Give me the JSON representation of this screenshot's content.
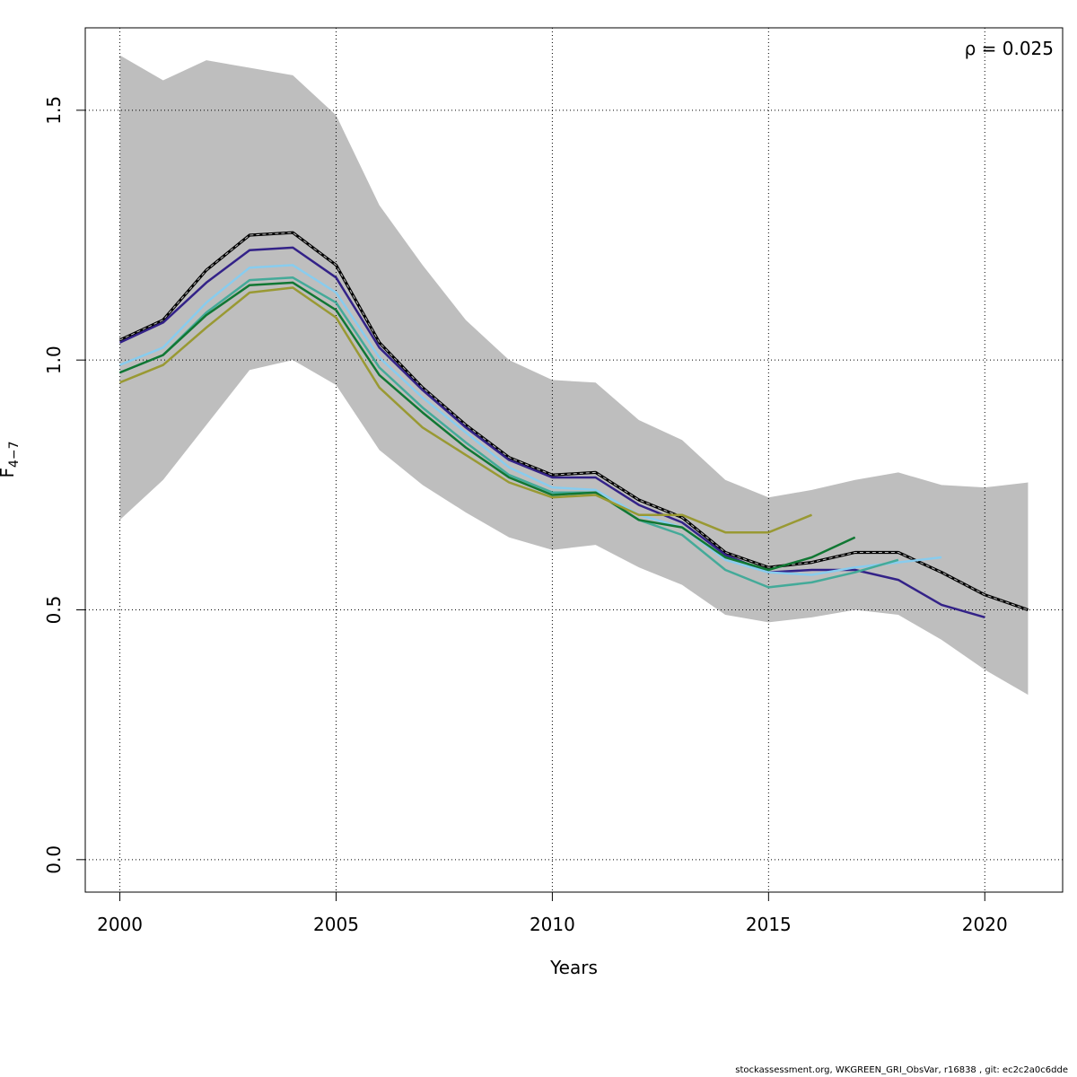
{
  "chart_data": {
    "type": "line",
    "title": "",
    "xlabel": "Years",
    "ylabel_main": "F",
    "ylabel_sub": "4−7",
    "xlim": [
      1999.2,
      2021.8
    ],
    "ylim": [
      -0.065,
      1.665
    ],
    "x_ticks": [
      2000,
      2005,
      2010,
      2015,
      2020
    ],
    "x_tick_labels": [
      "2000",
      "2005",
      "2010",
      "2015",
      "2020"
    ],
    "y_ticks": [
      0.0,
      0.5,
      1.0,
      1.5
    ],
    "y_tick_labels": [
      "0.0",
      "0.5",
      "1.0",
      "1.5"
    ],
    "grid": true,
    "annotation": "ρ = 0.025",
    "confidence_band": {
      "x": [
        2000,
        2001,
        2002,
        2003,
        2004,
        2005,
        2006,
        2007,
        2008,
        2009,
        2010,
        2011,
        2012,
        2013,
        2014,
        2015,
        2016,
        2017,
        2018,
        2019,
        2020,
        2021
      ],
      "upper": [
        1.61,
        1.56,
        1.6,
        1.585,
        1.57,
        1.49,
        1.31,
        1.19,
        1.08,
        1.0,
        0.96,
        0.955,
        0.88,
        0.84,
        0.76,
        0.725,
        0.74,
        0.76,
        0.775,
        0.75,
        0.745,
        0.755
      ],
      "lower": [
        0.68,
        0.76,
        0.87,
        0.98,
        1.0,
        0.95,
        0.82,
        0.75,
        0.695,
        0.645,
        0.62,
        0.63,
        0.585,
        0.55,
        0.49,
        0.475,
        0.485,
        0.5,
        0.49,
        0.44,
        0.38,
        0.33
      ],
      "color": "#bebebe"
    },
    "series": [
      {
        "x": [
          2000,
          2001,
          2002,
          2003,
          2004,
          2005,
          2006,
          2007,
          2008,
          2009,
          2010,
          2011,
          2012,
          2013,
          2014,
          2015,
          2016,
          2017,
          2018,
          2019,
          2020,
          2021
        ],
        "values": [
          1.04,
          1.08,
          1.18,
          1.25,
          1.255,
          1.19,
          1.035,
          0.945,
          0.87,
          0.805,
          0.77,
          0.775,
          0.72,
          0.685,
          0.615,
          0.585,
          0.595,
          0.615,
          0.615,
          0.575,
          0.53,
          0.5
        ],
        "color": "#000000",
        "style": "dashed"
      },
      {
        "x": [
          2000,
          2001,
          2002,
          2003,
          2004,
          2005,
          2006,
          2007,
          2008,
          2009,
          2010,
          2011,
          2012,
          2013,
          2014,
          2015,
          2016,
          2017,
          2018,
          2019,
          2020
        ],
        "values": [
          1.035,
          1.075,
          1.155,
          1.22,
          1.225,
          1.165,
          1.025,
          0.94,
          0.865,
          0.8,
          0.765,
          0.765,
          0.71,
          0.675,
          0.61,
          0.575,
          0.58,
          0.58,
          0.56,
          0.51,
          0.485
        ],
        "color": "#332288",
        "style": "solid"
      },
      {
        "x": [
          2000,
          2001,
          2002,
          2003,
          2004,
          2005,
          2006,
          2007,
          2008,
          2009,
          2010,
          2011,
          2012,
          2013,
          2014,
          2015,
          2016,
          2017,
          2018,
          2019
        ],
        "values": [
          0.99,
          1.025,
          1.115,
          1.185,
          1.19,
          1.135,
          1.005,
          0.925,
          0.855,
          0.785,
          0.745,
          0.74,
          0.69,
          0.665,
          0.6,
          0.575,
          0.57,
          0.585,
          0.595,
          0.605
        ],
        "color": "#88ccee",
        "style": "solid"
      },
      {
        "x": [
          2000,
          2001,
          2002,
          2003,
          2004,
          2005,
          2006,
          2007,
          2008,
          2009,
          2010,
          2011,
          2012,
          2013,
          2014,
          2015,
          2016,
          2017,
          2018
        ],
        "values": [
          0.975,
          1.01,
          1.095,
          1.16,
          1.165,
          1.115,
          0.985,
          0.905,
          0.835,
          0.77,
          0.735,
          0.735,
          0.68,
          0.65,
          0.58,
          0.545,
          0.555,
          0.575,
          0.6
        ],
        "color": "#44aa99",
        "style": "solid"
      },
      {
        "x": [
          2000,
          2001,
          2002,
          2003,
          2004,
          2005,
          2006,
          2007,
          2008,
          2009,
          2010,
          2011,
          2012,
          2013,
          2014,
          2015,
          2016,
          2017
        ],
        "values": [
          0.975,
          1.01,
          1.09,
          1.15,
          1.155,
          1.1,
          0.97,
          0.895,
          0.825,
          0.765,
          0.73,
          0.735,
          0.68,
          0.665,
          0.605,
          0.58,
          0.605,
          0.645
        ],
        "color": "#117733",
        "style": "solid"
      },
      {
        "x": [
          2000,
          2001,
          2002,
          2003,
          2004,
          2005,
          2006,
          2007,
          2008,
          2009,
          2010,
          2011,
          2012,
          2013,
          2014,
          2015,
          2016
        ],
        "values": [
          0.955,
          0.99,
          1.065,
          1.135,
          1.145,
          1.085,
          0.945,
          0.865,
          0.81,
          0.755,
          0.725,
          0.73,
          0.69,
          0.69,
          0.655,
          0.655,
          0.69
        ],
        "color": "#999933",
        "style": "solid"
      }
    ]
  },
  "footer": "stockassessment.org, WKGREEN_GRI_ObsVar, r16838 , git: ec2c2a0c6dde"
}
